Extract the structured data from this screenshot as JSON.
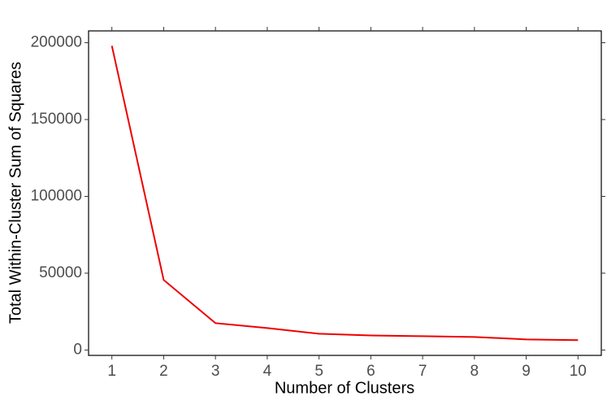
{
  "chart_data": {
    "type": "line",
    "x_label": "Number of Clusters",
    "y_label": "Total Within-Cluster Sum of Squares",
    "x": [
      1,
      2,
      3,
      4,
      5,
      6,
      7,
      8,
      9,
      10
    ],
    "series": [
      {
        "color": "#ee0000",
        "values": [
          198000,
          45600,
          17500,
          14300,
          10600,
          9500,
          9000,
          8500,
          6900,
          6400
        ]
      }
    ],
    "xlim": [
      0.55,
      10.45
    ],
    "xticks": [
      1,
      2,
      3,
      4,
      5,
      6,
      7,
      8,
      9,
      10
    ],
    "ylim": [
      -3500,
      207700
    ],
    "yticks": [
      0,
      50000,
      100000,
      150000,
      200000
    ]
  }
}
